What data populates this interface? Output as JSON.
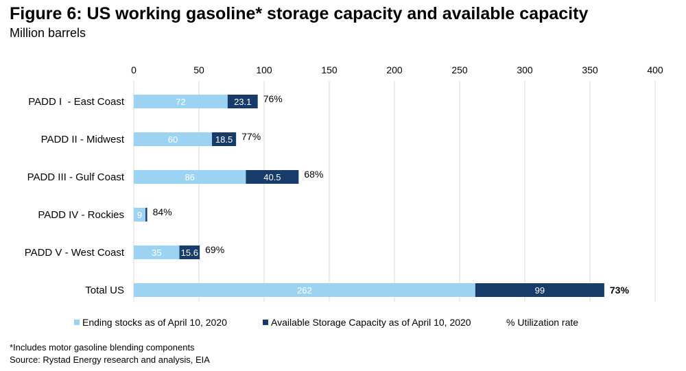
{
  "header": {
    "title": "Figure 6: US working gasoline* storage capacity and available capacity",
    "subtitle": "Million barrels"
  },
  "chart_data": {
    "type": "bar",
    "orientation": "horizontal",
    "stacked": true,
    "categories": [
      "PADD I  - East Coast",
      "PADD II - Midwest",
      "PADD III - Gulf Coast",
      "PADD IV - Rockies",
      "PADD V - West Coast",
      "Total US"
    ],
    "series": [
      {
        "name": "Ending stocks as of April 10, 2020",
        "values": [
          72,
          60,
          86,
          9,
          35,
          262
        ],
        "labels": [
          "72",
          "60",
          "86",
          "9",
          "35",
          "262"
        ],
        "color": "#9dd3f2"
      },
      {
        "name": "Available Storage Capacity as of April 10, 2020",
        "values": [
          23.1,
          18.5,
          40.5,
          1.3,
          15.6,
          99
        ],
        "labels": [
          "23.1",
          "18.5",
          "40.5",
          "",
          "15.6",
          "99"
        ],
        "color": "#173c69"
      }
    ],
    "utilization": {
      "name": "% Utilization rate",
      "labels": [
        "76%",
        "77%",
        "68%",
        "84%",
        "69%",
        "73%"
      ]
    },
    "xticks": [
      "0",
      "50",
      "100",
      "150",
      "200",
      "250",
      "300",
      "350",
      "400"
    ],
    "xlim": [
      0,
      400
    ],
    "grid": true,
    "legend_position": "bottom"
  },
  "footnote": "*Includes motor gasoline blending components",
  "source": "Source: Rystad Energy research and analysis, EIA"
}
